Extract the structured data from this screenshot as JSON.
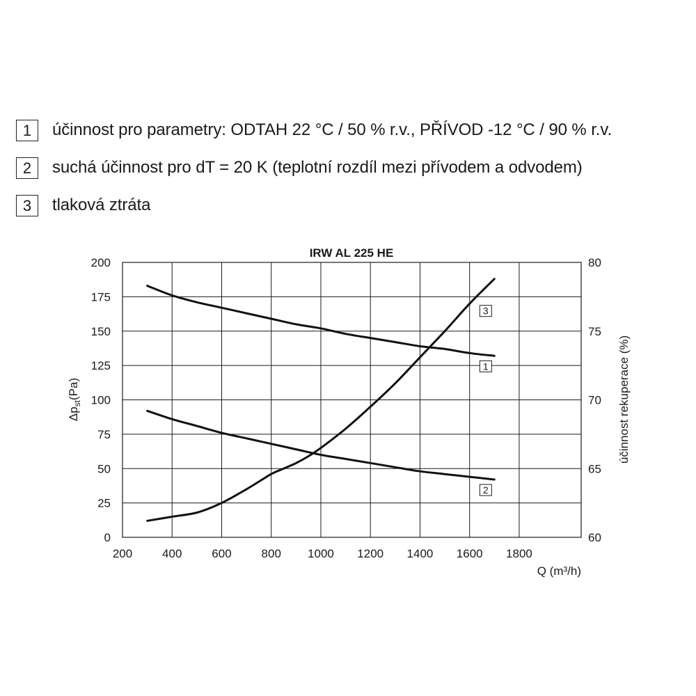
{
  "legend": [
    {
      "num": "1",
      "text": "účinnost pro parametry: ODTAH 22 °C / 50 % r.v., PŘÍVOD -12 °C / 90 % r.v."
    },
    {
      "num": "2",
      "text": "suchá účinnost pro dT = 20 K (teplotní rozdíl mezi přívodem a odvodem)"
    },
    {
      "num": "3",
      "text": "tlaková ztráta"
    }
  ],
  "chart_data": {
    "type": "line",
    "title": "IRW AL 225 HE",
    "xlabel": "Q (m³/h)",
    "ylabel_left": "Δp",
    "ylabel_left_sub": "st",
    "ylabel_left_unit": "(Pa)",
    "ylabel_right": "účinnost rekuperace (%)",
    "xlim": [
      200,
      2050
    ],
    "xticks": [
      200,
      400,
      600,
      800,
      1000,
      1200,
      1400,
      1600,
      1800
    ],
    "ylim_left": [
      0,
      200
    ],
    "yticks_left": [
      0,
      25,
      50,
      75,
      100,
      125,
      150,
      175,
      200
    ],
    "ylim_right": [
      60,
      80
    ],
    "yticks_right": [
      60,
      65,
      70,
      75,
      80
    ],
    "grid": true,
    "series": [
      {
        "name": "1",
        "axis": "right",
        "x": [
          300,
          400,
          500,
          600,
          700,
          800,
          900,
          1000,
          1100,
          1200,
          1300,
          1400,
          1500,
          1600,
          1700
        ],
        "y": [
          78.3,
          77.6,
          77.1,
          76.7,
          76.3,
          75.9,
          75.5,
          75.2,
          74.8,
          74.5,
          74.2,
          73.9,
          73.7,
          73.4,
          73.2
        ]
      },
      {
        "name": "2",
        "axis": "right",
        "x": [
          300,
          400,
          500,
          600,
          700,
          800,
          900,
          1000,
          1100,
          1200,
          1300,
          1400,
          1500,
          1600,
          1700
        ],
        "y": [
          69.2,
          68.6,
          68.1,
          67.6,
          67.2,
          66.8,
          66.4,
          66.0,
          65.7,
          65.4,
          65.1,
          64.8,
          64.6,
          64.4,
          64.2
        ]
      },
      {
        "name": "3",
        "axis": "left",
        "x": [
          300,
          400,
          500,
          600,
          700,
          800,
          850,
          900,
          950,
          1000,
          1100,
          1200,
          1300,
          1400,
          1500,
          1600,
          1700
        ],
        "y": [
          12,
          15,
          18,
          25,
          35,
          46,
          50,
          54,
          59,
          65,
          79,
          95,
          112,
          131,
          150,
          170,
          188
        ]
      }
    ]
  }
}
